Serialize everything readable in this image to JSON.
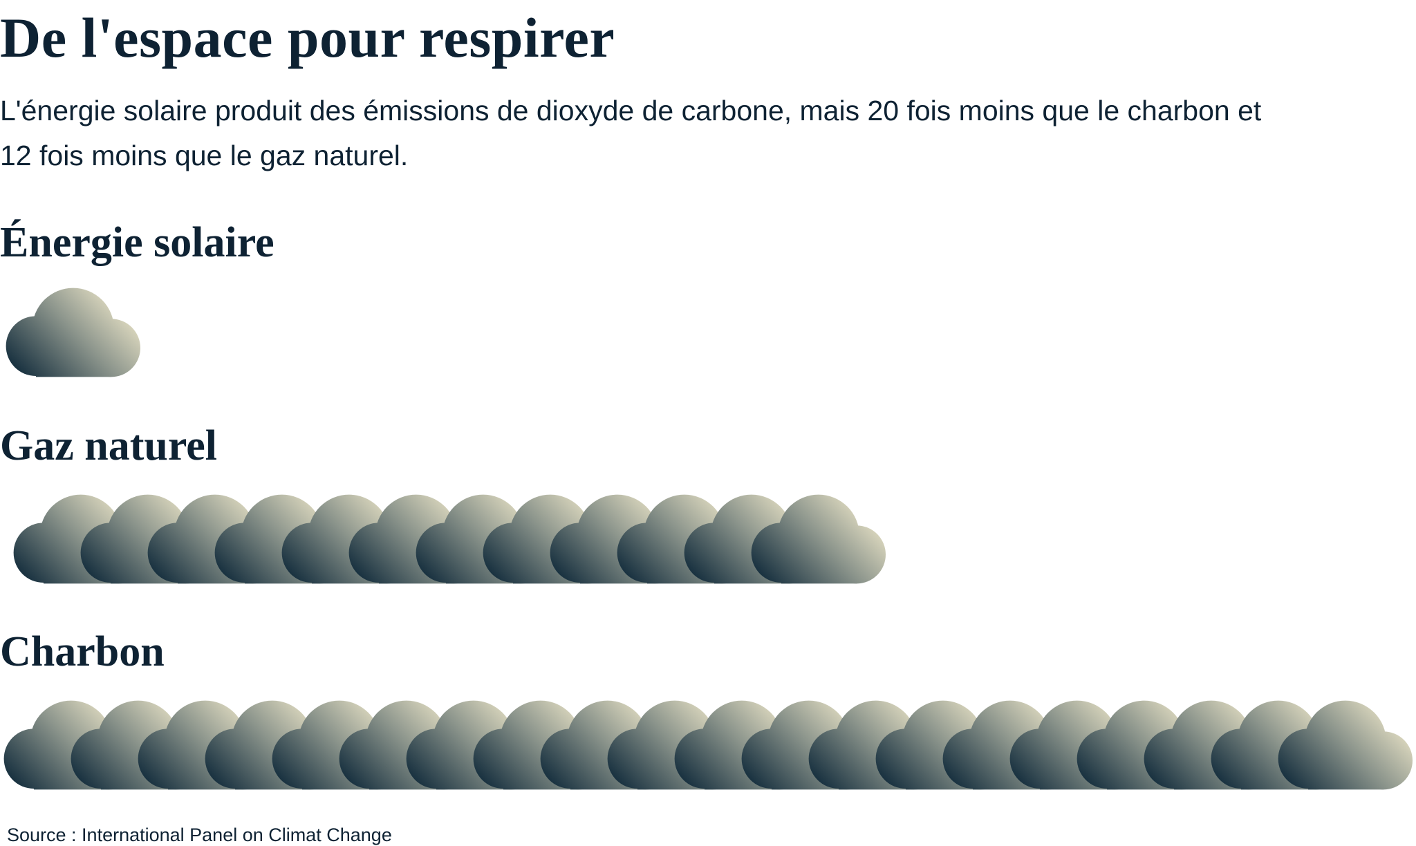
{
  "title": "De l'espace pour respirer",
  "subtitle": "L'énergie solaire produit des émissions de dioxyde de carbone, mais 20 fois moins que le charbon et 12 fois moins que le gaz naturel.",
  "source": "Source : International Panel on Climat Change",
  "chart_data": {
    "type": "pictogram",
    "icon": "cloud-icon",
    "categories": [
      "Énergie solaire",
      "Gaz naturel",
      "Charbon"
    ],
    "values": [
      1,
      12,
      20
    ],
    "colors": {
      "gradient_dark": "#17303f",
      "gradient_light": "#e8e2c6",
      "text": "#0e2233"
    }
  }
}
